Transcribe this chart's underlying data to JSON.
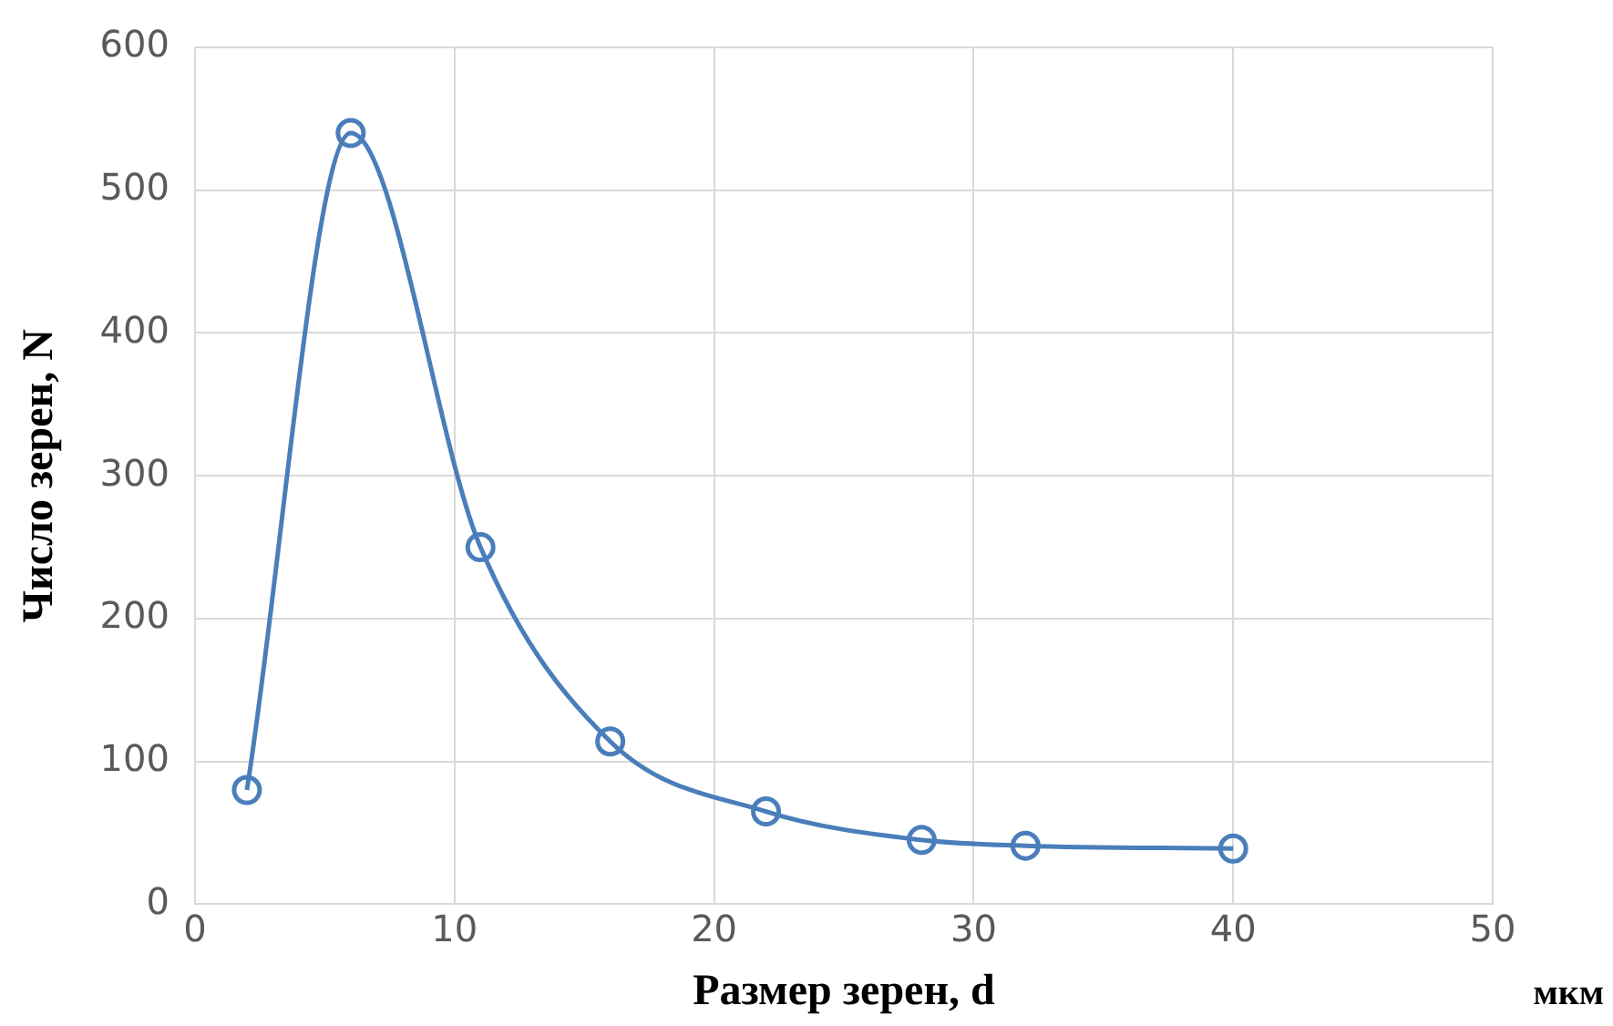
{
  "chart_data": {
    "type": "line",
    "xlabel": "Размер зерен, d",
    "ylabel": "Число зерен, N",
    "annotations": [
      "мкм"
    ],
    "x": [
      2,
      6,
      11,
      16,
      22,
      28,
      32,
      40
    ],
    "series": [
      {
        "color": "#4a7ebb",
        "values": [
          80,
          540,
          250,
          114,
          65,
          45,
          41,
          39
        ]
      }
    ],
    "xlim": [
      0,
      50
    ],
    "xticks": [
      0,
      10,
      20,
      30,
      40,
      50
    ],
    "ylim": [
      0,
      600
    ],
    "yticks": [
      0,
      100,
      200,
      300,
      400,
      500,
      600
    ],
    "grid": true,
    "legend": false,
    "marker": "circle",
    "line_style": "solid"
  }
}
